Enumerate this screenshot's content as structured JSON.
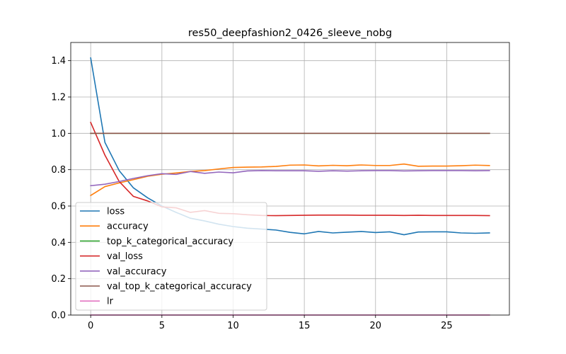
{
  "chart_data": {
    "type": "line",
    "title": "res50_deepfashion2_0426_sleeve_nobg",
    "xlabel": "",
    "ylabel": "",
    "xlim": [
      -1.4,
      29.4
    ],
    "ylim": [
      0.0,
      1.5
    ],
    "xticks": [
      0,
      5,
      10,
      15,
      20,
      25
    ],
    "yticks": [
      0.0,
      0.2,
      0.4,
      0.6,
      0.8,
      1.0,
      1.2,
      1.4
    ],
    "xtick_labels": [
      "0",
      "5",
      "10",
      "15",
      "20",
      "25"
    ],
    "ytick_labels": [
      "0.0",
      "0.2",
      "0.4",
      "0.6",
      "0.8",
      "1.0",
      "1.2",
      "1.4"
    ],
    "grid": true,
    "legend_position": "lower-left",
    "x": [
      0,
      1,
      2,
      3,
      4,
      5,
      6,
      7,
      8,
      9,
      10,
      11,
      12,
      13,
      14,
      15,
      16,
      17,
      18,
      19,
      20,
      21,
      22,
      23,
      24,
      25,
      26,
      27,
      28
    ],
    "series": [
      {
        "name": "loss",
        "color": "#1f77b4",
        "values": [
          1.415,
          0.95,
          0.795,
          0.7,
          0.645,
          0.6,
          0.565,
          0.533,
          0.518,
          0.5,
          0.487,
          0.478,
          0.473,
          0.468,
          0.455,
          0.447,
          0.46,
          0.452,
          0.456,
          0.46,
          0.454,
          0.458,
          0.442,
          0.457,
          0.458,
          0.458,
          0.452,
          0.45,
          0.452
        ]
      },
      {
        "name": "accuracy",
        "color": "#ff7f0e",
        "values": [
          0.658,
          0.707,
          0.727,
          0.745,
          0.764,
          0.775,
          0.782,
          0.79,
          0.795,
          0.804,
          0.812,
          0.814,
          0.815,
          0.818,
          0.825,
          0.826,
          0.821,
          0.824,
          0.822,
          0.826,
          0.823,
          0.823,
          0.831,
          0.819,
          0.82,
          0.82,
          0.822,
          0.825,
          0.823
        ]
      },
      {
        "name": "top_k_categorical_accuracy",
        "color": "#2ca02c",
        "values": [
          1.0,
          1.0,
          1.0,
          1.0,
          1.0,
          1.0,
          1.0,
          1.0,
          1.0,
          1.0,
          1.0,
          1.0,
          1.0,
          1.0,
          1.0,
          1.0,
          1.0,
          1.0,
          1.0,
          1.0,
          1.0,
          1.0,
          1.0,
          1.0,
          1.0,
          1.0,
          1.0,
          1.0,
          1.0
        ]
      },
      {
        "name": "val_loss",
        "color": "#d62728",
        "values": [
          1.06,
          0.88,
          0.735,
          0.653,
          0.628,
          0.595,
          0.59,
          0.565,
          0.575,
          0.56,
          0.558,
          0.552,
          0.548,
          0.547,
          0.548,
          0.549,
          0.55,
          0.55,
          0.55,
          0.549,
          0.549,
          0.549,
          0.548,
          0.549,
          0.548,
          0.548,
          0.548,
          0.548,
          0.547
        ]
      },
      {
        "name": "val_accuracy",
        "color": "#9467bd",
        "values": [
          0.712,
          0.72,
          0.735,
          0.752,
          0.767,
          0.778,
          0.774,
          0.79,
          0.78,
          0.787,
          0.783,
          0.793,
          0.795,
          0.794,
          0.794,
          0.794,
          0.791,
          0.794,
          0.792,
          0.794,
          0.795,
          0.795,
          0.793,
          0.794,
          0.795,
          0.795,
          0.795,
          0.794,
          0.795
        ]
      },
      {
        "name": "val_top_k_categorical_accuracy",
        "color": "#8c564b",
        "values": [
          1.0,
          1.0,
          1.0,
          1.0,
          1.0,
          1.0,
          1.0,
          1.0,
          1.0,
          1.0,
          1.0,
          1.0,
          1.0,
          1.0,
          1.0,
          1.0,
          1.0,
          1.0,
          1.0,
          1.0,
          1.0,
          1.0,
          1.0,
          1.0,
          1.0,
          1.0,
          1.0,
          1.0,
          1.0
        ]
      },
      {
        "name": "lr",
        "color": "#e377c2",
        "values": [
          0.0001,
          0.0001,
          0.0001,
          0.0001,
          0.0001,
          0.0001,
          0.0001,
          0.0001,
          0.0001,
          0.0001,
          0.0001,
          0.0001,
          0.0001,
          0.0001,
          0.0001,
          0.0001,
          0.0001,
          0.0001,
          0.0001,
          0.0001,
          0.0001,
          0.0001,
          0.0001,
          0.0001,
          0.0001,
          0.0001,
          0.0001,
          0.0001,
          0.0001
        ]
      }
    ]
  }
}
